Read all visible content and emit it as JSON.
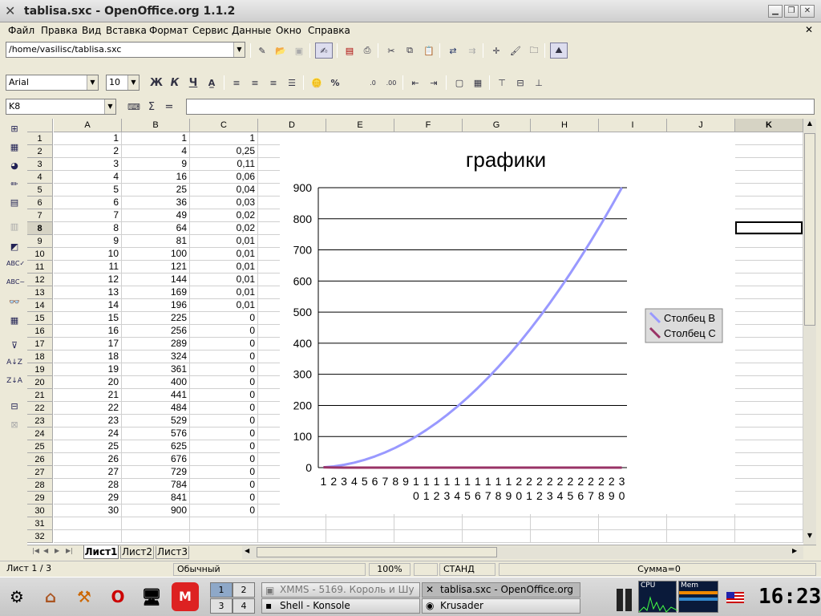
{
  "window": {
    "title": "tablisa.sxc - OpenOffice.org 1.1.2"
  },
  "menu": [
    "Файл",
    "Правка",
    "Вид",
    "Вставка",
    "Формат",
    "Сервис",
    "Данные",
    "Окно",
    "Справка"
  ],
  "toolbar": {
    "file_path": "/home/vasilisc/tablisa.sxc"
  },
  "format_bar": {
    "font_name": "Arial",
    "font_size": "10",
    "bold": "Ж",
    "italic": "К",
    "underline": "Ч"
  },
  "formula_bar": {
    "cell_ref": "K8",
    "sum_symbol": "Σ",
    "equals": "=",
    "value": ""
  },
  "sheet": {
    "columns": [
      "A",
      "B",
      "C",
      "D",
      "E",
      "F",
      "G",
      "H",
      "I",
      "J",
      "K"
    ],
    "row_numbers": [
      "1",
      "2",
      "3",
      "4",
      "5",
      "6",
      "7",
      "8",
      "9",
      "10",
      "11",
      "12",
      "13",
      "14",
      "15",
      "16",
      "17",
      "18",
      "19",
      "20",
      "21",
      "22",
      "23",
      "24",
      "25",
      "26",
      "27",
      "28",
      "29",
      "30",
      "31",
      "32"
    ],
    "col_a": [
      "1",
      "2",
      "3",
      "4",
      "5",
      "6",
      "7",
      "8",
      "9",
      "10",
      "11",
      "12",
      "13",
      "14",
      "15",
      "16",
      "17",
      "18",
      "19",
      "20",
      "21",
      "22",
      "23",
      "24",
      "25",
      "26",
      "27",
      "28",
      "29",
      "30"
    ],
    "col_b": [
      "1",
      "4",
      "9",
      "16",
      "25",
      "36",
      "49",
      "64",
      "81",
      "100",
      "121",
      "144",
      "169",
      "196",
      "225",
      "256",
      "289",
      "324",
      "361",
      "400",
      "441",
      "484",
      "529",
      "576",
      "625",
      "676",
      "729",
      "784",
      "841",
      "900"
    ],
    "col_c": [
      "1",
      "0,25",
      "0,11",
      "0,06",
      "0,04",
      "0,03",
      "0,02",
      "0,02",
      "0,01",
      "0,01",
      "0,01",
      "0,01",
      "0,01",
      "0,01",
      "0",
      "0",
      "0",
      "0",
      "0",
      "0",
      "0",
      "0",
      "0",
      "0",
      "0",
      "0",
      "0",
      "0",
      "0",
      "0"
    ],
    "active_cell": "K8",
    "active_row": "8",
    "active_col": "K"
  },
  "chart_data": {
    "type": "line",
    "title": "графики",
    "categories": [
      "1",
      "2",
      "3",
      "4",
      "5",
      "6",
      "7",
      "8",
      "9",
      "10",
      "11",
      "12",
      "13",
      "14",
      "15",
      "16",
      "17",
      "18",
      "19",
      "20",
      "21",
      "22",
      "23",
      "24",
      "25",
      "26",
      "27",
      "28",
      "29",
      "30"
    ],
    "series": [
      {
        "name": "Столбец B",
        "color": "#9999ff",
        "values": [
          1,
          4,
          9,
          16,
          25,
          36,
          49,
          64,
          81,
          100,
          121,
          144,
          169,
          196,
          225,
          256,
          289,
          324,
          361,
          400,
          441,
          484,
          529,
          576,
          625,
          676,
          729,
          784,
          841,
          900
        ]
      },
      {
        "name": "Столбец C",
        "color": "#993366",
        "values": [
          1,
          0.25,
          0.11,
          0.06,
          0.04,
          0.03,
          0.02,
          0.02,
          0.01,
          0.01,
          0.01,
          0.01,
          0.01,
          0.01,
          0,
          0,
          0,
          0,
          0,
          0,
          0,
          0,
          0,
          0,
          0,
          0,
          0,
          0,
          0,
          0
        ]
      }
    ],
    "yticks": [
      "0",
      "100",
      "200",
      "300",
      "400",
      "500",
      "600",
      "700",
      "800",
      "900"
    ],
    "ylim": [
      0,
      900
    ],
    "grid": true,
    "legend": "right"
  },
  "sheet_tabs": [
    "Лист1",
    "Лист2",
    "Лист3"
  ],
  "status": {
    "sheet": "Лист 1 / 3",
    "style": "Обычный",
    "zoom": "100%",
    "mode": "СТАНД",
    "sum": "Сумма=0"
  },
  "taskbar": {
    "pager": [
      "1",
      "2",
      "3",
      "4"
    ],
    "tasks": [
      "XMMS - 5169. Король и Шу",
      "tablisa.sxc - OpenOffice.org",
      "Shell - Konsole",
      "Krusader"
    ],
    "cpu_label": "CPU",
    "mem_label": "Mem",
    "clock": "16:23"
  }
}
